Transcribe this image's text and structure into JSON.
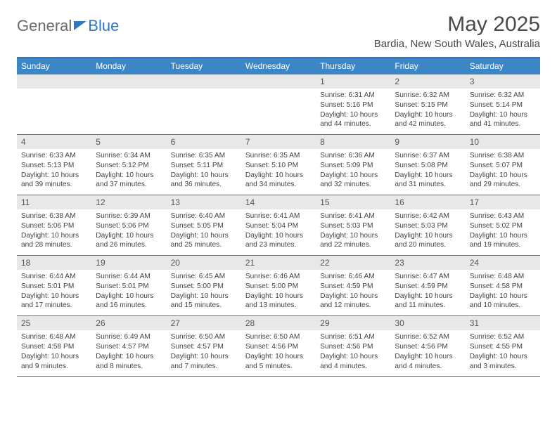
{
  "logo": {
    "part1": "General",
    "part2": "Blue"
  },
  "title": "May 2025",
  "location": "Bardia, New South Wales, Australia",
  "colors": {
    "accent": "#3d86c6",
    "border": "#2f79c2",
    "daynum_bg": "#e8e8e8",
    "text": "#4a4a4a"
  },
  "weekdays": [
    "Sunday",
    "Monday",
    "Tuesday",
    "Wednesday",
    "Thursday",
    "Friday",
    "Saturday"
  ],
  "weeks": [
    [
      {
        "n": "",
        "sr": "",
        "ss": "",
        "dl": ""
      },
      {
        "n": "",
        "sr": "",
        "ss": "",
        "dl": ""
      },
      {
        "n": "",
        "sr": "",
        "ss": "",
        "dl": ""
      },
      {
        "n": "",
        "sr": "",
        "ss": "",
        "dl": ""
      },
      {
        "n": "1",
        "sr": "Sunrise: 6:31 AM",
        "ss": "Sunset: 5:16 PM",
        "dl": "Daylight: 10 hours and 44 minutes."
      },
      {
        "n": "2",
        "sr": "Sunrise: 6:32 AM",
        "ss": "Sunset: 5:15 PM",
        "dl": "Daylight: 10 hours and 42 minutes."
      },
      {
        "n": "3",
        "sr": "Sunrise: 6:32 AM",
        "ss": "Sunset: 5:14 PM",
        "dl": "Daylight: 10 hours and 41 minutes."
      }
    ],
    [
      {
        "n": "4",
        "sr": "Sunrise: 6:33 AM",
        "ss": "Sunset: 5:13 PM",
        "dl": "Daylight: 10 hours and 39 minutes."
      },
      {
        "n": "5",
        "sr": "Sunrise: 6:34 AM",
        "ss": "Sunset: 5:12 PM",
        "dl": "Daylight: 10 hours and 37 minutes."
      },
      {
        "n": "6",
        "sr": "Sunrise: 6:35 AM",
        "ss": "Sunset: 5:11 PM",
        "dl": "Daylight: 10 hours and 36 minutes."
      },
      {
        "n": "7",
        "sr": "Sunrise: 6:35 AM",
        "ss": "Sunset: 5:10 PM",
        "dl": "Daylight: 10 hours and 34 minutes."
      },
      {
        "n": "8",
        "sr": "Sunrise: 6:36 AM",
        "ss": "Sunset: 5:09 PM",
        "dl": "Daylight: 10 hours and 32 minutes."
      },
      {
        "n": "9",
        "sr": "Sunrise: 6:37 AM",
        "ss": "Sunset: 5:08 PM",
        "dl": "Daylight: 10 hours and 31 minutes."
      },
      {
        "n": "10",
        "sr": "Sunrise: 6:38 AM",
        "ss": "Sunset: 5:07 PM",
        "dl": "Daylight: 10 hours and 29 minutes."
      }
    ],
    [
      {
        "n": "11",
        "sr": "Sunrise: 6:38 AM",
        "ss": "Sunset: 5:06 PM",
        "dl": "Daylight: 10 hours and 28 minutes."
      },
      {
        "n": "12",
        "sr": "Sunrise: 6:39 AM",
        "ss": "Sunset: 5:06 PM",
        "dl": "Daylight: 10 hours and 26 minutes."
      },
      {
        "n": "13",
        "sr": "Sunrise: 6:40 AM",
        "ss": "Sunset: 5:05 PM",
        "dl": "Daylight: 10 hours and 25 minutes."
      },
      {
        "n": "14",
        "sr": "Sunrise: 6:41 AM",
        "ss": "Sunset: 5:04 PM",
        "dl": "Daylight: 10 hours and 23 minutes."
      },
      {
        "n": "15",
        "sr": "Sunrise: 6:41 AM",
        "ss": "Sunset: 5:03 PM",
        "dl": "Daylight: 10 hours and 22 minutes."
      },
      {
        "n": "16",
        "sr": "Sunrise: 6:42 AM",
        "ss": "Sunset: 5:03 PM",
        "dl": "Daylight: 10 hours and 20 minutes."
      },
      {
        "n": "17",
        "sr": "Sunrise: 6:43 AM",
        "ss": "Sunset: 5:02 PM",
        "dl": "Daylight: 10 hours and 19 minutes."
      }
    ],
    [
      {
        "n": "18",
        "sr": "Sunrise: 6:44 AM",
        "ss": "Sunset: 5:01 PM",
        "dl": "Daylight: 10 hours and 17 minutes."
      },
      {
        "n": "19",
        "sr": "Sunrise: 6:44 AM",
        "ss": "Sunset: 5:01 PM",
        "dl": "Daylight: 10 hours and 16 minutes."
      },
      {
        "n": "20",
        "sr": "Sunrise: 6:45 AM",
        "ss": "Sunset: 5:00 PM",
        "dl": "Daylight: 10 hours and 15 minutes."
      },
      {
        "n": "21",
        "sr": "Sunrise: 6:46 AM",
        "ss": "Sunset: 5:00 PM",
        "dl": "Daylight: 10 hours and 13 minutes."
      },
      {
        "n": "22",
        "sr": "Sunrise: 6:46 AM",
        "ss": "Sunset: 4:59 PM",
        "dl": "Daylight: 10 hours and 12 minutes."
      },
      {
        "n": "23",
        "sr": "Sunrise: 6:47 AM",
        "ss": "Sunset: 4:59 PM",
        "dl": "Daylight: 10 hours and 11 minutes."
      },
      {
        "n": "24",
        "sr": "Sunrise: 6:48 AM",
        "ss": "Sunset: 4:58 PM",
        "dl": "Daylight: 10 hours and 10 minutes."
      }
    ],
    [
      {
        "n": "25",
        "sr": "Sunrise: 6:48 AM",
        "ss": "Sunset: 4:58 PM",
        "dl": "Daylight: 10 hours and 9 minutes."
      },
      {
        "n": "26",
        "sr": "Sunrise: 6:49 AM",
        "ss": "Sunset: 4:57 PM",
        "dl": "Daylight: 10 hours and 8 minutes."
      },
      {
        "n": "27",
        "sr": "Sunrise: 6:50 AM",
        "ss": "Sunset: 4:57 PM",
        "dl": "Daylight: 10 hours and 7 minutes."
      },
      {
        "n": "28",
        "sr": "Sunrise: 6:50 AM",
        "ss": "Sunset: 4:56 PM",
        "dl": "Daylight: 10 hours and 5 minutes."
      },
      {
        "n": "29",
        "sr": "Sunrise: 6:51 AM",
        "ss": "Sunset: 4:56 PM",
        "dl": "Daylight: 10 hours and 4 minutes."
      },
      {
        "n": "30",
        "sr": "Sunrise: 6:52 AM",
        "ss": "Sunset: 4:56 PM",
        "dl": "Daylight: 10 hours and 4 minutes."
      },
      {
        "n": "31",
        "sr": "Sunrise: 6:52 AM",
        "ss": "Sunset: 4:55 PM",
        "dl": "Daylight: 10 hours and 3 minutes."
      }
    ]
  ]
}
